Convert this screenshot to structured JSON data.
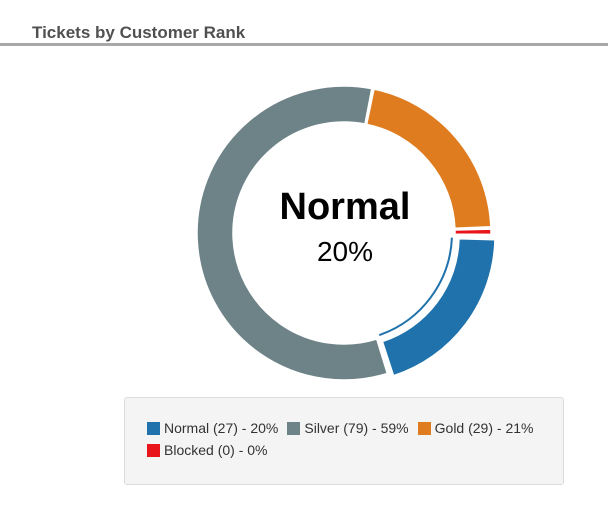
{
  "widget": {
    "title": "Tickets by Customer Rank"
  },
  "center": {
    "name": "Normal",
    "percent": "20%"
  },
  "chart_data": {
    "type": "pie",
    "variant": "donut",
    "title": "Tickets by Customer Rank",
    "categories": [
      "Normal",
      "Silver",
      "Gold",
      "Blocked"
    ],
    "values": [
      27,
      79,
      29,
      0
    ],
    "percents": [
      20,
      59,
      21,
      0
    ],
    "colors": [
      "#1f72ab",
      "#6e8387",
      "#e07c20",
      "#e8161b"
    ],
    "highlighted": "Normal",
    "legend_position": "bottom",
    "legend": [
      {
        "label": "Normal (27) - 20%",
        "color": "#1f72ab"
      },
      {
        "label": "Silver (79) - 59%",
        "color": "#6e8387"
      },
      {
        "label": "Gold (29) - 21%",
        "color": "#e07c20"
      },
      {
        "label": "Blocked (0) - 0%",
        "color": "#e8161b"
      }
    ]
  }
}
